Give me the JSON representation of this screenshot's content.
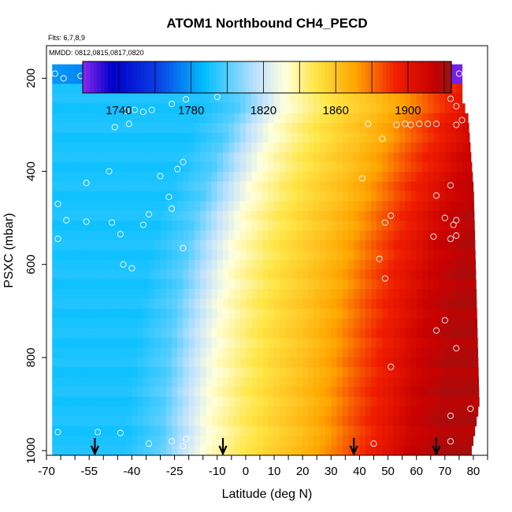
{
  "chart_data": {
    "type": "heatmap",
    "title": "ATOM1 Northbound CH4_PECD",
    "annotations": [
      "Flts: 6,7,8,9",
      "MMDD: 0812,0815,0817,0820"
    ],
    "xlabel": "Latitude (deg N)",
    "ylabel": "PSXC (mbar)",
    "xlim": [
      -70,
      85
    ],
    "ylim": [
      1010,
      130
    ],
    "y_inverted": true,
    "x_ticks": [
      -70,
      -55,
      -40,
      -25,
      -10,
      0,
      10,
      20,
      30,
      40,
      50,
      60,
      70,
      80
    ],
    "y_ticks": [
      200,
      400,
      600,
      800,
      1000
    ],
    "colorbar": {
      "range": [
        1720,
        1924
      ],
      "ticks": [
        1740,
        1780,
        1820,
        1860,
        1900
      ]
    },
    "profile": {
      "lat": [
        -68,
        -40,
        -28,
        -22,
        -17,
        -12,
        0,
        10,
        20,
        30,
        40,
        50,
        60,
        70,
        79
      ],
      "value": [
        1791,
        1791,
        1800,
        1812,
        1822,
        1832,
        1845,
        1854,
        1862,
        1872,
        1886,
        1898,
        1912,
        1918,
        1918
      ],
      "shift_by_pressure": [
        [
          200,
          30
        ],
        [
          300,
          22
        ],
        [
          400,
          16
        ],
        [
          500,
          10
        ],
        [
          600,
          6
        ],
        [
          700,
          3
        ],
        [
          800,
          1
        ],
        [
          900,
          -1
        ],
        [
          1000,
          -2
        ]
      ],
      "top_band_pressure": [
        170,
        215
      ],
      "top_band_value": [
        1780,
        1722
      ],
      "valid_lat_max": [
        [
          250,
          76
        ],
        [
          280,
          78
        ],
        [
          440,
          80
        ],
        [
          900,
          82
        ],
        [
          1010,
          79
        ]
      ]
    },
    "obs_points": [
      [
        -67,
        190
      ],
      [
        -64,
        200
      ],
      [
        -58,
        195
      ],
      [
        -55,
        205
      ],
      [
        -42,
        270
      ],
      [
        -39,
        268
      ],
      [
        -36,
        272
      ],
      [
        -33,
        268
      ],
      [
        -46,
        305
      ],
      [
        -41,
        298
      ],
      [
        -26,
        255
      ],
      [
        -21,
        245
      ],
      [
        -13,
        215
      ],
      [
        -10,
        240
      ],
      [
        -48,
        400
      ],
      [
        -56,
        425
      ],
      [
        -30,
        410
      ],
      [
        -24,
        395
      ],
      [
        -22,
        380
      ],
      [
        -27,
        455
      ],
      [
        -34,
        492
      ],
      [
        -36,
        515
      ],
      [
        -47,
        510
      ],
      [
        -56,
        508
      ],
      [
        -63,
        505
      ],
      [
        -44,
        535
      ],
      [
        -66,
        470
      ],
      [
        -66,
        545
      ],
      [
        -40,
        608
      ],
      [
        -43,
        600
      ],
      [
        -22,
        565
      ],
      [
        -26,
        480
      ],
      [
        -66,
        960
      ],
      [
        -52,
        960
      ],
      [
        -44,
        962
      ],
      [
        -34,
        985
      ],
      [
        -26,
        980
      ],
      [
        -21,
        975
      ],
      [
        -22,
        990
      ],
      [
        -9,
        985
      ],
      [
        43,
        298
      ],
      [
        48,
        330
      ],
      [
        53,
        300
      ],
      [
        56,
        298
      ],
      [
        58,
        300
      ],
      [
        61,
        298
      ],
      [
        64,
        298
      ],
      [
        67,
        298
      ],
      [
        74,
        300
      ],
      [
        76,
        290
      ],
      [
        74,
        260
      ],
      [
        72,
        244
      ],
      [
        75,
        190
      ],
      [
        41,
        415
      ],
      [
        51,
        495
      ],
      [
        49,
        510
      ],
      [
        47,
        588
      ],
      [
        49,
        630
      ],
      [
        51,
        820
      ],
      [
        67,
        452
      ],
      [
        72,
        430
      ],
      [
        70,
        500
      ],
      [
        74,
        505
      ],
      [
        73,
        515
      ],
      [
        74,
        538
      ],
      [
        72,
        545
      ],
      [
        66,
        540
      ],
      [
        70,
        720
      ],
      [
        67,
        742
      ],
      [
        74,
        780
      ],
      [
        79,
        910
      ],
      [
        72,
        925
      ],
      [
        72,
        980
      ],
      [
        45,
        985
      ]
    ],
    "arrows": [
      -53,
      -8,
      38,
      67
    ]
  }
}
